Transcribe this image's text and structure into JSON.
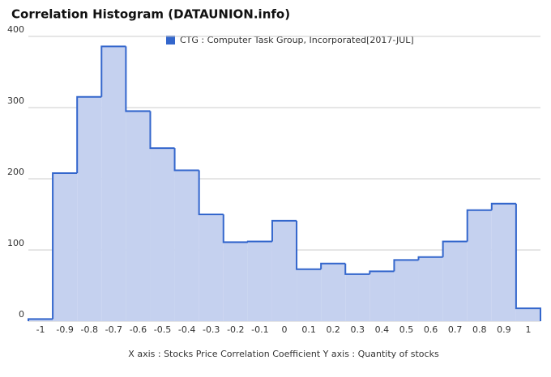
{
  "chart_data": {
    "type": "histogram",
    "title": "Correlation Histogram (DATAUNION.info)",
    "legend": "CTG : Computer Task Group, Incorporated[2017-JUL]",
    "axis_label": "X axis : Stocks Price Correlation Coefficient  Y axis : Quantity of stocks",
    "bins": [
      -1.05,
      -0.95,
      -0.85,
      -0.75,
      -0.65,
      -0.55,
      -0.45,
      -0.35,
      -0.25,
      -0.15,
      -0.05,
      0.05,
      0.15,
      0.25,
      0.35,
      0.45,
      0.55,
      0.65,
      0.75,
      0.85,
      0.95,
      1.05
    ],
    "values": [
      3,
      208,
      315,
      386,
      295,
      243,
      212,
      150,
      111,
      112,
      141,
      73,
      81,
      66,
      70,
      86,
      90,
      112,
      156,
      165,
      18
    ],
    "color": "#3366cc",
    "fill": "#c5d1ef",
    "xlim": [
      -1.05,
      1.05
    ],
    "xticks": [
      -1,
      -0.9,
      -0.8,
      -0.7,
      -0.6,
      -0.5,
      -0.4,
      -0.3,
      -0.2,
      -0.1,
      0,
      0.1,
      0.2,
      0.3,
      0.4,
      0.5,
      0.6,
      0.7,
      0.8,
      0.9,
      1
    ],
    "ylim": [
      0,
      400
    ],
    "yticks": [
      0,
      100,
      200,
      300,
      400
    ],
    "grid": true
  }
}
